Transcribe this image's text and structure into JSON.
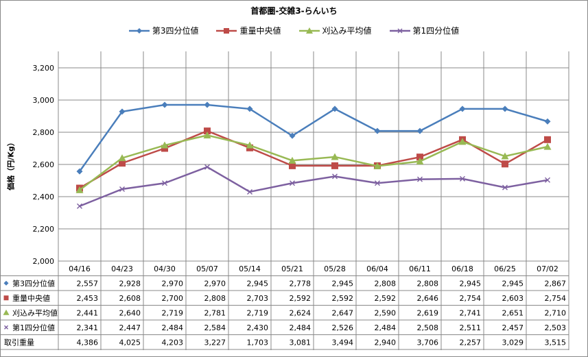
{
  "chart_data": {
    "type": "line",
    "title": "首都圏-交雑3-らんいち",
    "ylabel": "価格（円/Kg）",
    "ylim": [
      2000,
      3200
    ],
    "yticks": [
      "2,000",
      "2,200",
      "2,400",
      "2,600",
      "2,800",
      "3,000",
      "3,200"
    ],
    "categories": [
      "04/16",
      "04/23",
      "04/30",
      "05/07",
      "05/14",
      "05/21",
      "05/28",
      "06/04",
      "06/11",
      "06/18",
      "06/25",
      "07/02"
    ],
    "legend_position": "top",
    "series": [
      {
        "name": "第3四分位値",
        "color": "#4a7ebb",
        "marker": "diamond",
        "values": [
          2557,
          2928,
          2970,
          2970,
          2945,
          2778,
          2945,
          2808,
          2808,
          2945,
          2945,
          2867
        ],
        "labels": [
          "2,557",
          "2,928",
          "2,970",
          "2,970",
          "2,945",
          "2,778",
          "2,945",
          "2,808",
          "2,808",
          "2,945",
          "2,945",
          "2,867"
        ]
      },
      {
        "name": "重量中央値",
        "color": "#be4b48",
        "marker": "square",
        "values": [
          2453,
          2608,
          2700,
          2808,
          2703,
          2592,
          2592,
          2592,
          2646,
          2754,
          2603,
          2754
        ],
        "labels": [
          "2,453",
          "2,608",
          "2,700",
          "2,808",
          "2,703",
          "2,592",
          "2,592",
          "2,592",
          "2,646",
          "2,754",
          "2,603",
          "2,754"
        ]
      },
      {
        "name": "刈込み平均値",
        "color": "#98b954",
        "marker": "triangle",
        "values": [
          2441,
          2640,
          2719,
          2781,
          2719,
          2624,
          2647,
          2590,
          2619,
          2741,
          2651,
          2710
        ],
        "labels": [
          "2,441",
          "2,640",
          "2,719",
          "2,781",
          "2,719",
          "2,624",
          "2,647",
          "2,590",
          "2,619",
          "2,741",
          "2,651",
          "2,710"
        ]
      },
      {
        "name": "第1四分位値",
        "color": "#7d60a0",
        "marker": "x",
        "values": [
          2341,
          2447,
          2484,
          2584,
          2430,
          2484,
          2526,
          2484,
          2508,
          2511,
          2457,
          2503
        ],
        "labels": [
          "2,341",
          "2,447",
          "2,484",
          "2,584",
          "2,430",
          "2,484",
          "2,526",
          "2,484",
          "2,508",
          "2,511",
          "2,457",
          "2,503"
        ]
      }
    ],
    "table_extra_row": {
      "name": "取引重量",
      "labels": [
        "4,386",
        "4,025",
        "4,203",
        "3,227",
        "1,703",
        "3,081",
        "3,494",
        "2,940",
        "3,706",
        "2,257",
        "3,029",
        "3,515"
      ]
    }
  }
}
